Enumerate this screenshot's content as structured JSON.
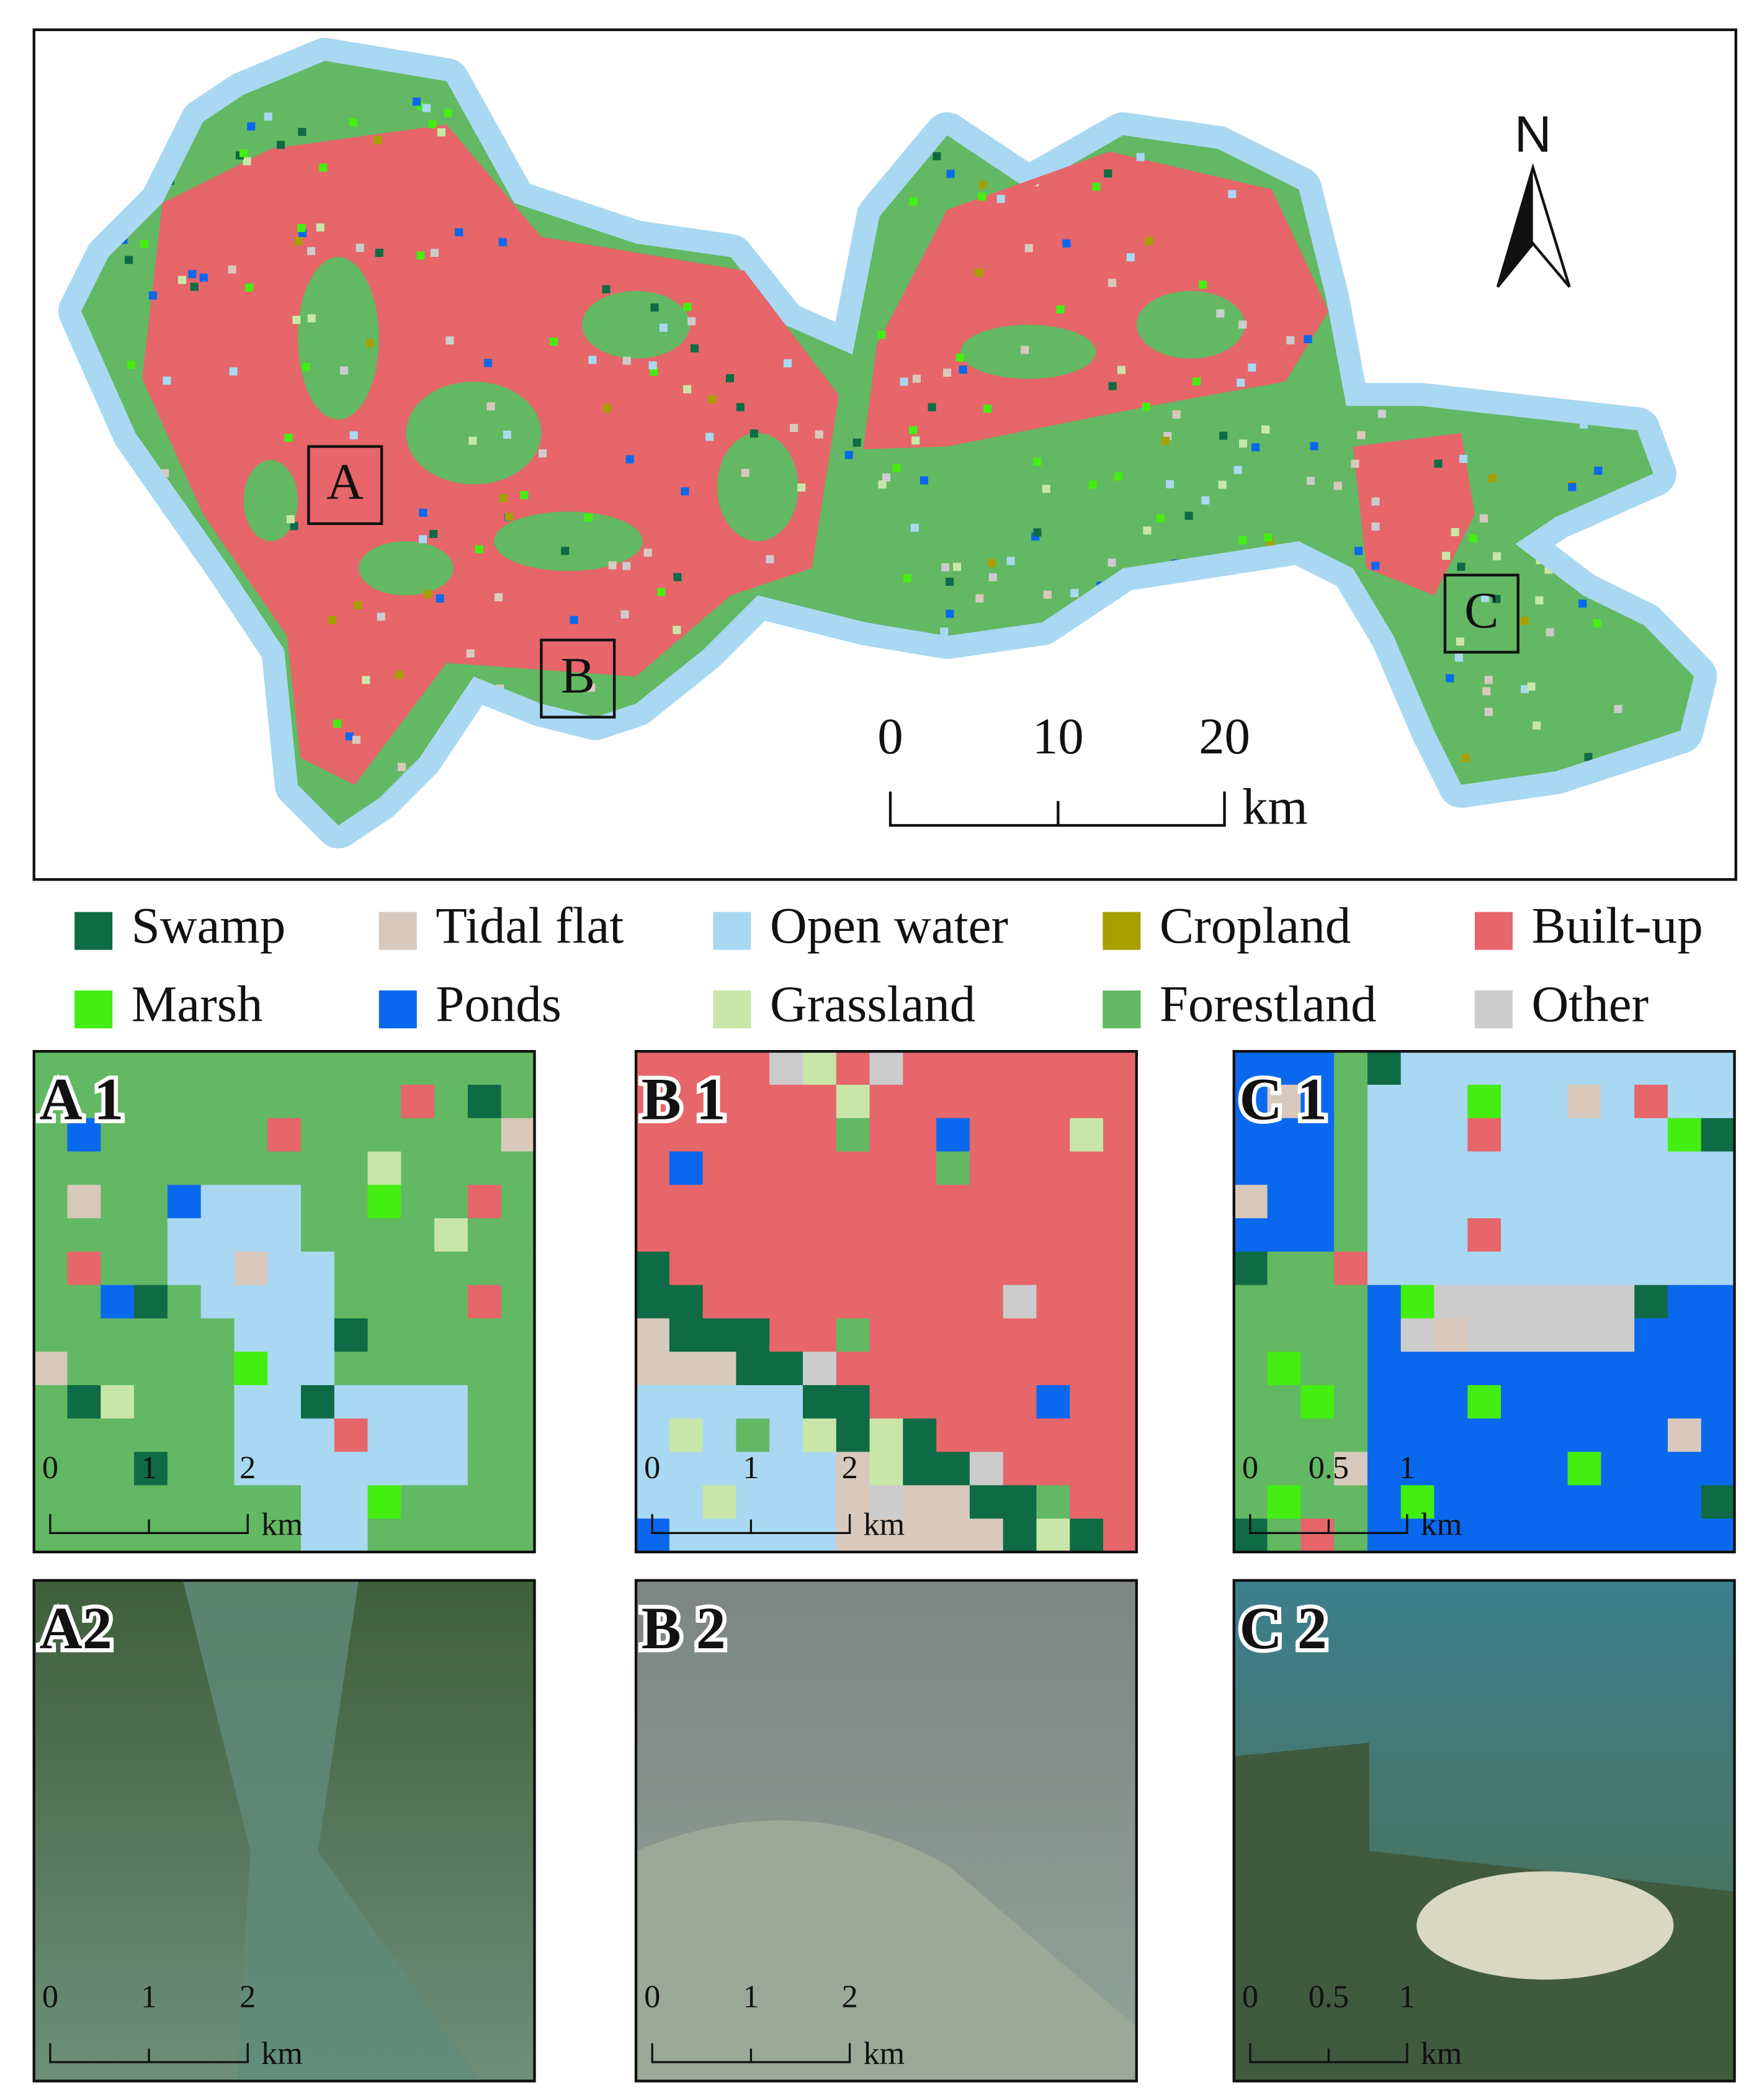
{
  "map": {
    "north": "N",
    "region_labels": [
      "A",
      "B",
      "C"
    ],
    "scale_bar": {
      "labels": [
        "0",
        "10",
        "20"
      ],
      "unit": "km"
    }
  },
  "legend": [
    {
      "label": "Swamp",
      "color": "#0e6b45"
    },
    {
      "label": "Tidal flat",
      "color": "#d9c9bc"
    },
    {
      "label": "Open water",
      "color": "#a9d8f2"
    },
    {
      "label": "Cropland",
      "color": "#a8a000"
    },
    {
      "label": "Built-up",
      "color": "#e6666a"
    },
    {
      "label": "Marsh",
      "color": "#44ee11"
    },
    {
      "label": "Ponds",
      "color": "#0a68ee"
    },
    {
      "label": "Grassland",
      "color": "#c9e6a9"
    },
    {
      "label": "Forestland",
      "color": "#63b863"
    },
    {
      "label": "Other",
      "color": "#cccccc"
    }
  ],
  "panels": [
    {
      "label": "A 1",
      "scale": [
        "0",
        "1",
        "2"
      ],
      "unit": "km"
    },
    {
      "label": "B 1",
      "scale": [
        "0",
        "1",
        "2"
      ],
      "unit": "km"
    },
    {
      "label": "C 1",
      "scale": [
        "0",
        "0.5",
        "1"
      ],
      "unit": "km"
    },
    {
      "label": "A2",
      "scale": [
        "0",
        "1",
        "2"
      ],
      "unit": "km"
    },
    {
      "label": "B 2",
      "scale": [
        "0",
        "1",
        "2"
      ],
      "unit": "km"
    },
    {
      "label": "C 2",
      "scale": [
        "0",
        "0.5",
        "1"
      ],
      "unit": "km"
    }
  ]
}
